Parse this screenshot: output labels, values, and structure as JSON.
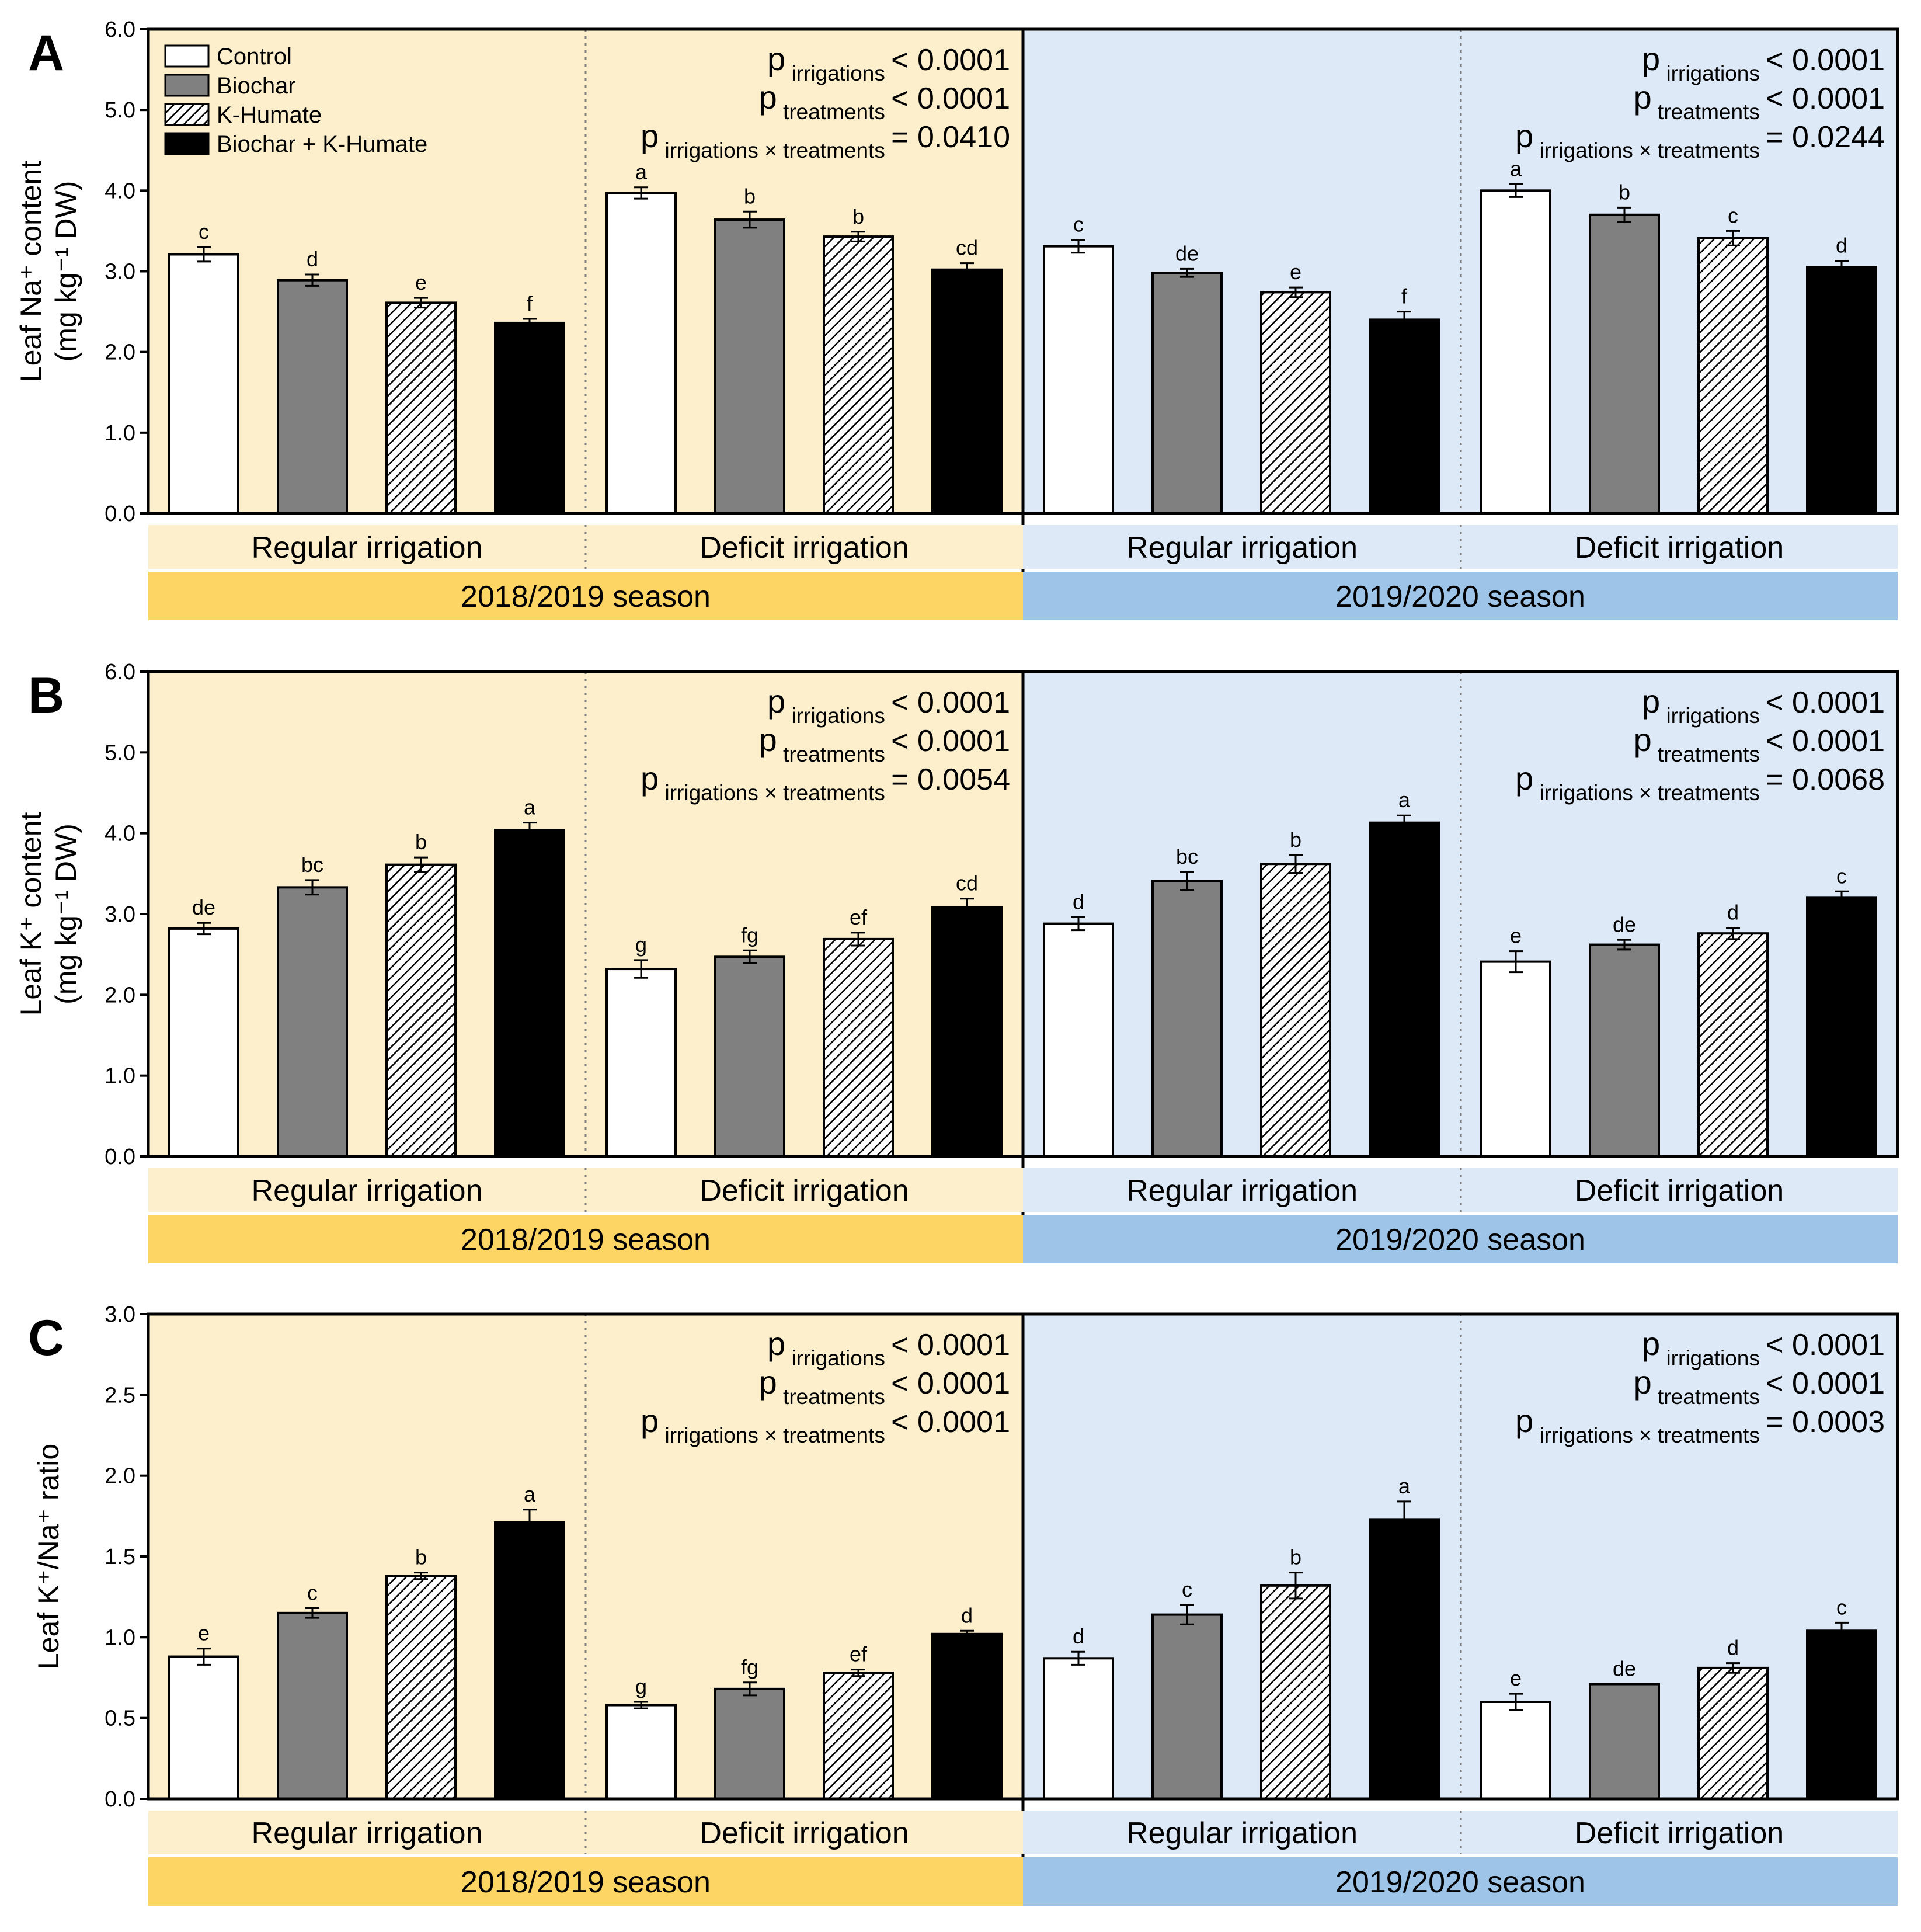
{
  "colors": {
    "season1_bg": "#fdefcc",
    "season2_bg": "#dde9f6",
    "season1_band": "#fdd565",
    "season2_band": "#9ec5e8",
    "control": "#ffffff",
    "biochar": "#808080",
    "k_humate": "hatched",
    "combined": "#000000"
  },
  "legend": [
    "Control",
    "Biochar",
    "K-Humate",
    "Biochar + K-Humate"
  ],
  "irrigation_labels": [
    "Regular irrigation",
    "Deficit irrigation"
  ],
  "season_labels": [
    "2018/2019 season",
    "2019/2020 season"
  ],
  "stats_text": {
    "p": "p",
    "irrigations": "irrigations",
    "treatments": "treatments",
    "interaction": "irrigations × treatments"
  },
  "chart_data": [
    {
      "type": "bar",
      "panel": "A",
      "ylabel_line1": "Leaf Na⁺ content",
      "ylabel_line2": "(mg kg⁻¹ DW)",
      "ylim": [
        0,
        6
      ],
      "yticks": [
        "0.0",
        "1.0",
        "2.0",
        "3.0",
        "4.0",
        "5.0",
        "6.0"
      ],
      "series_names": [
        "Control",
        "Biochar",
        "K-Humate",
        "Biochar + K-Humate"
      ],
      "groups": [
        {
          "season": "2018/2019 season",
          "irrigation": "Regular irrigation",
          "values": [
            3.21,
            2.89,
            2.61,
            2.36
          ],
          "errors": [
            0.09,
            0.07,
            0.06,
            0.05
          ],
          "letters": [
            "c",
            "d",
            "e",
            "f"
          ]
        },
        {
          "season": "2018/2019 season",
          "irrigation": "Deficit irrigation",
          "values": [
            3.97,
            3.64,
            3.43,
            3.02
          ],
          "errors": [
            0.07,
            0.1,
            0.06,
            0.08
          ],
          "letters": [
            "a",
            "b",
            "b",
            "cd"
          ]
        },
        {
          "season": "2019/2020 season",
          "irrigation": "Regular irrigation",
          "values": [
            3.31,
            2.98,
            2.74,
            2.4
          ],
          "errors": [
            0.08,
            0.05,
            0.06,
            0.1
          ],
          "letters": [
            "c",
            "de",
            "e",
            "f"
          ]
        },
        {
          "season": "2019/2020 season",
          "irrigation": "Deficit irrigation",
          "values": [
            4.0,
            3.7,
            3.41,
            3.05
          ],
          "errors": [
            0.08,
            0.09,
            0.09,
            0.08
          ],
          "letters": [
            "a",
            "b",
            "c",
            "d"
          ]
        }
      ],
      "stats": [
        {
          "season": "2018/2019 season",
          "irrigations": "< 0.0001",
          "treatments": "< 0.0001",
          "interaction": "= 0.0410"
        },
        {
          "season": "2019/2020 season",
          "irrigations": "< 0.0001",
          "treatments": "< 0.0001",
          "interaction": "= 0.0244"
        }
      ]
    },
    {
      "type": "bar",
      "panel": "B",
      "ylabel_line1": "Leaf K⁺ content",
      "ylabel_line2": "(mg kg⁻¹ DW)",
      "ylim": [
        0,
        6
      ],
      "yticks": [
        "0.0",
        "1.0",
        "2.0",
        "3.0",
        "4.0",
        "5.0",
        "6.0"
      ],
      "series_names": [
        "Control",
        "Biochar",
        "K-Humate",
        "Biochar + K-Humate"
      ],
      "groups": [
        {
          "season": "2018/2019 season",
          "irrigation": "Regular irrigation",
          "values": [
            2.82,
            3.33,
            3.61,
            4.04
          ],
          "errors": [
            0.07,
            0.09,
            0.09,
            0.09
          ],
          "letters": [
            "de",
            "bc",
            "b",
            "a"
          ]
        },
        {
          "season": "2018/2019 season",
          "irrigation": "Deficit irrigation",
          "values": [
            2.32,
            2.47,
            2.69,
            3.08
          ],
          "errors": [
            0.11,
            0.08,
            0.08,
            0.11
          ],
          "letters": [
            "g",
            "fg",
            "ef",
            "cd"
          ]
        },
        {
          "season": "2019/2020 season",
          "irrigation": "Regular irrigation",
          "values": [
            2.88,
            3.41,
            3.62,
            4.13
          ],
          "errors": [
            0.08,
            0.11,
            0.11,
            0.09
          ],
          "letters": [
            "d",
            "bc",
            "b",
            "a"
          ]
        },
        {
          "season": "2019/2020 season",
          "irrigation": "Deficit irrigation",
          "values": [
            2.41,
            2.62,
            2.76,
            3.2
          ],
          "errors": [
            0.13,
            0.06,
            0.07,
            0.08
          ],
          "letters": [
            "e",
            "de",
            "d",
            "c"
          ]
        }
      ],
      "stats": [
        {
          "season": "2018/2019 season",
          "irrigations": "< 0.0001",
          "treatments": "< 0.0001",
          "interaction": "= 0.0054"
        },
        {
          "season": "2019/2020 season",
          "irrigations": "< 0.0001",
          "treatments": "< 0.0001",
          "interaction": "= 0.0068"
        }
      ]
    },
    {
      "type": "bar",
      "panel": "C",
      "ylabel_line1": "Leaf K⁺/Na⁺ ratio",
      "ylabel_line2": "",
      "ylim": [
        0,
        3
      ],
      "yticks": [
        "0.0",
        "0.5",
        "1.0",
        "1.5",
        "2.0",
        "2.5",
        "3.0"
      ],
      "series_names": [
        "Control",
        "Biochar",
        "K-Humate",
        "Biochar + K-Humate"
      ],
      "groups": [
        {
          "season": "2018/2019 season",
          "irrigation": "Regular irrigation",
          "values": [
            0.88,
            1.15,
            1.38,
            1.71
          ],
          "errors": [
            0.05,
            0.03,
            0.02,
            0.08
          ],
          "letters": [
            "e",
            "c",
            "b",
            "a"
          ]
        },
        {
          "season": "2018/2019 season",
          "irrigation": "Deficit irrigation",
          "values": [
            0.58,
            0.68,
            0.78,
            1.02
          ],
          "errors": [
            0.02,
            0.04,
            0.02,
            0.02
          ],
          "letters": [
            "g",
            "fg",
            "ef",
            "d"
          ]
        },
        {
          "season": "2019/2020 season",
          "irrigation": "Regular irrigation",
          "values": [
            0.87,
            1.14,
            1.32,
            1.73
          ],
          "errors": [
            0.04,
            0.06,
            0.08,
            0.11
          ],
          "letters": [
            "d",
            "c",
            "b",
            "a"
          ]
        },
        {
          "season": "2019/2020 season",
          "irrigation": "Deficit irrigation",
          "values": [
            0.6,
            0.71,
            0.81,
            1.04
          ],
          "errors": [
            0.05,
            0.0,
            0.03,
            0.05
          ],
          "letters": [
            "e",
            "de",
            "d",
            "c"
          ]
        }
      ],
      "stats": [
        {
          "season": "2018/2019 season",
          "irrigations": "< 0.0001",
          "treatments": "< 0.0001",
          "interaction": "< 0.0001"
        },
        {
          "season": "2019/2020 season",
          "irrigations": "< 0.0001",
          "treatments": "< 0.0001",
          "interaction": "= 0.0003"
        }
      ]
    }
  ]
}
